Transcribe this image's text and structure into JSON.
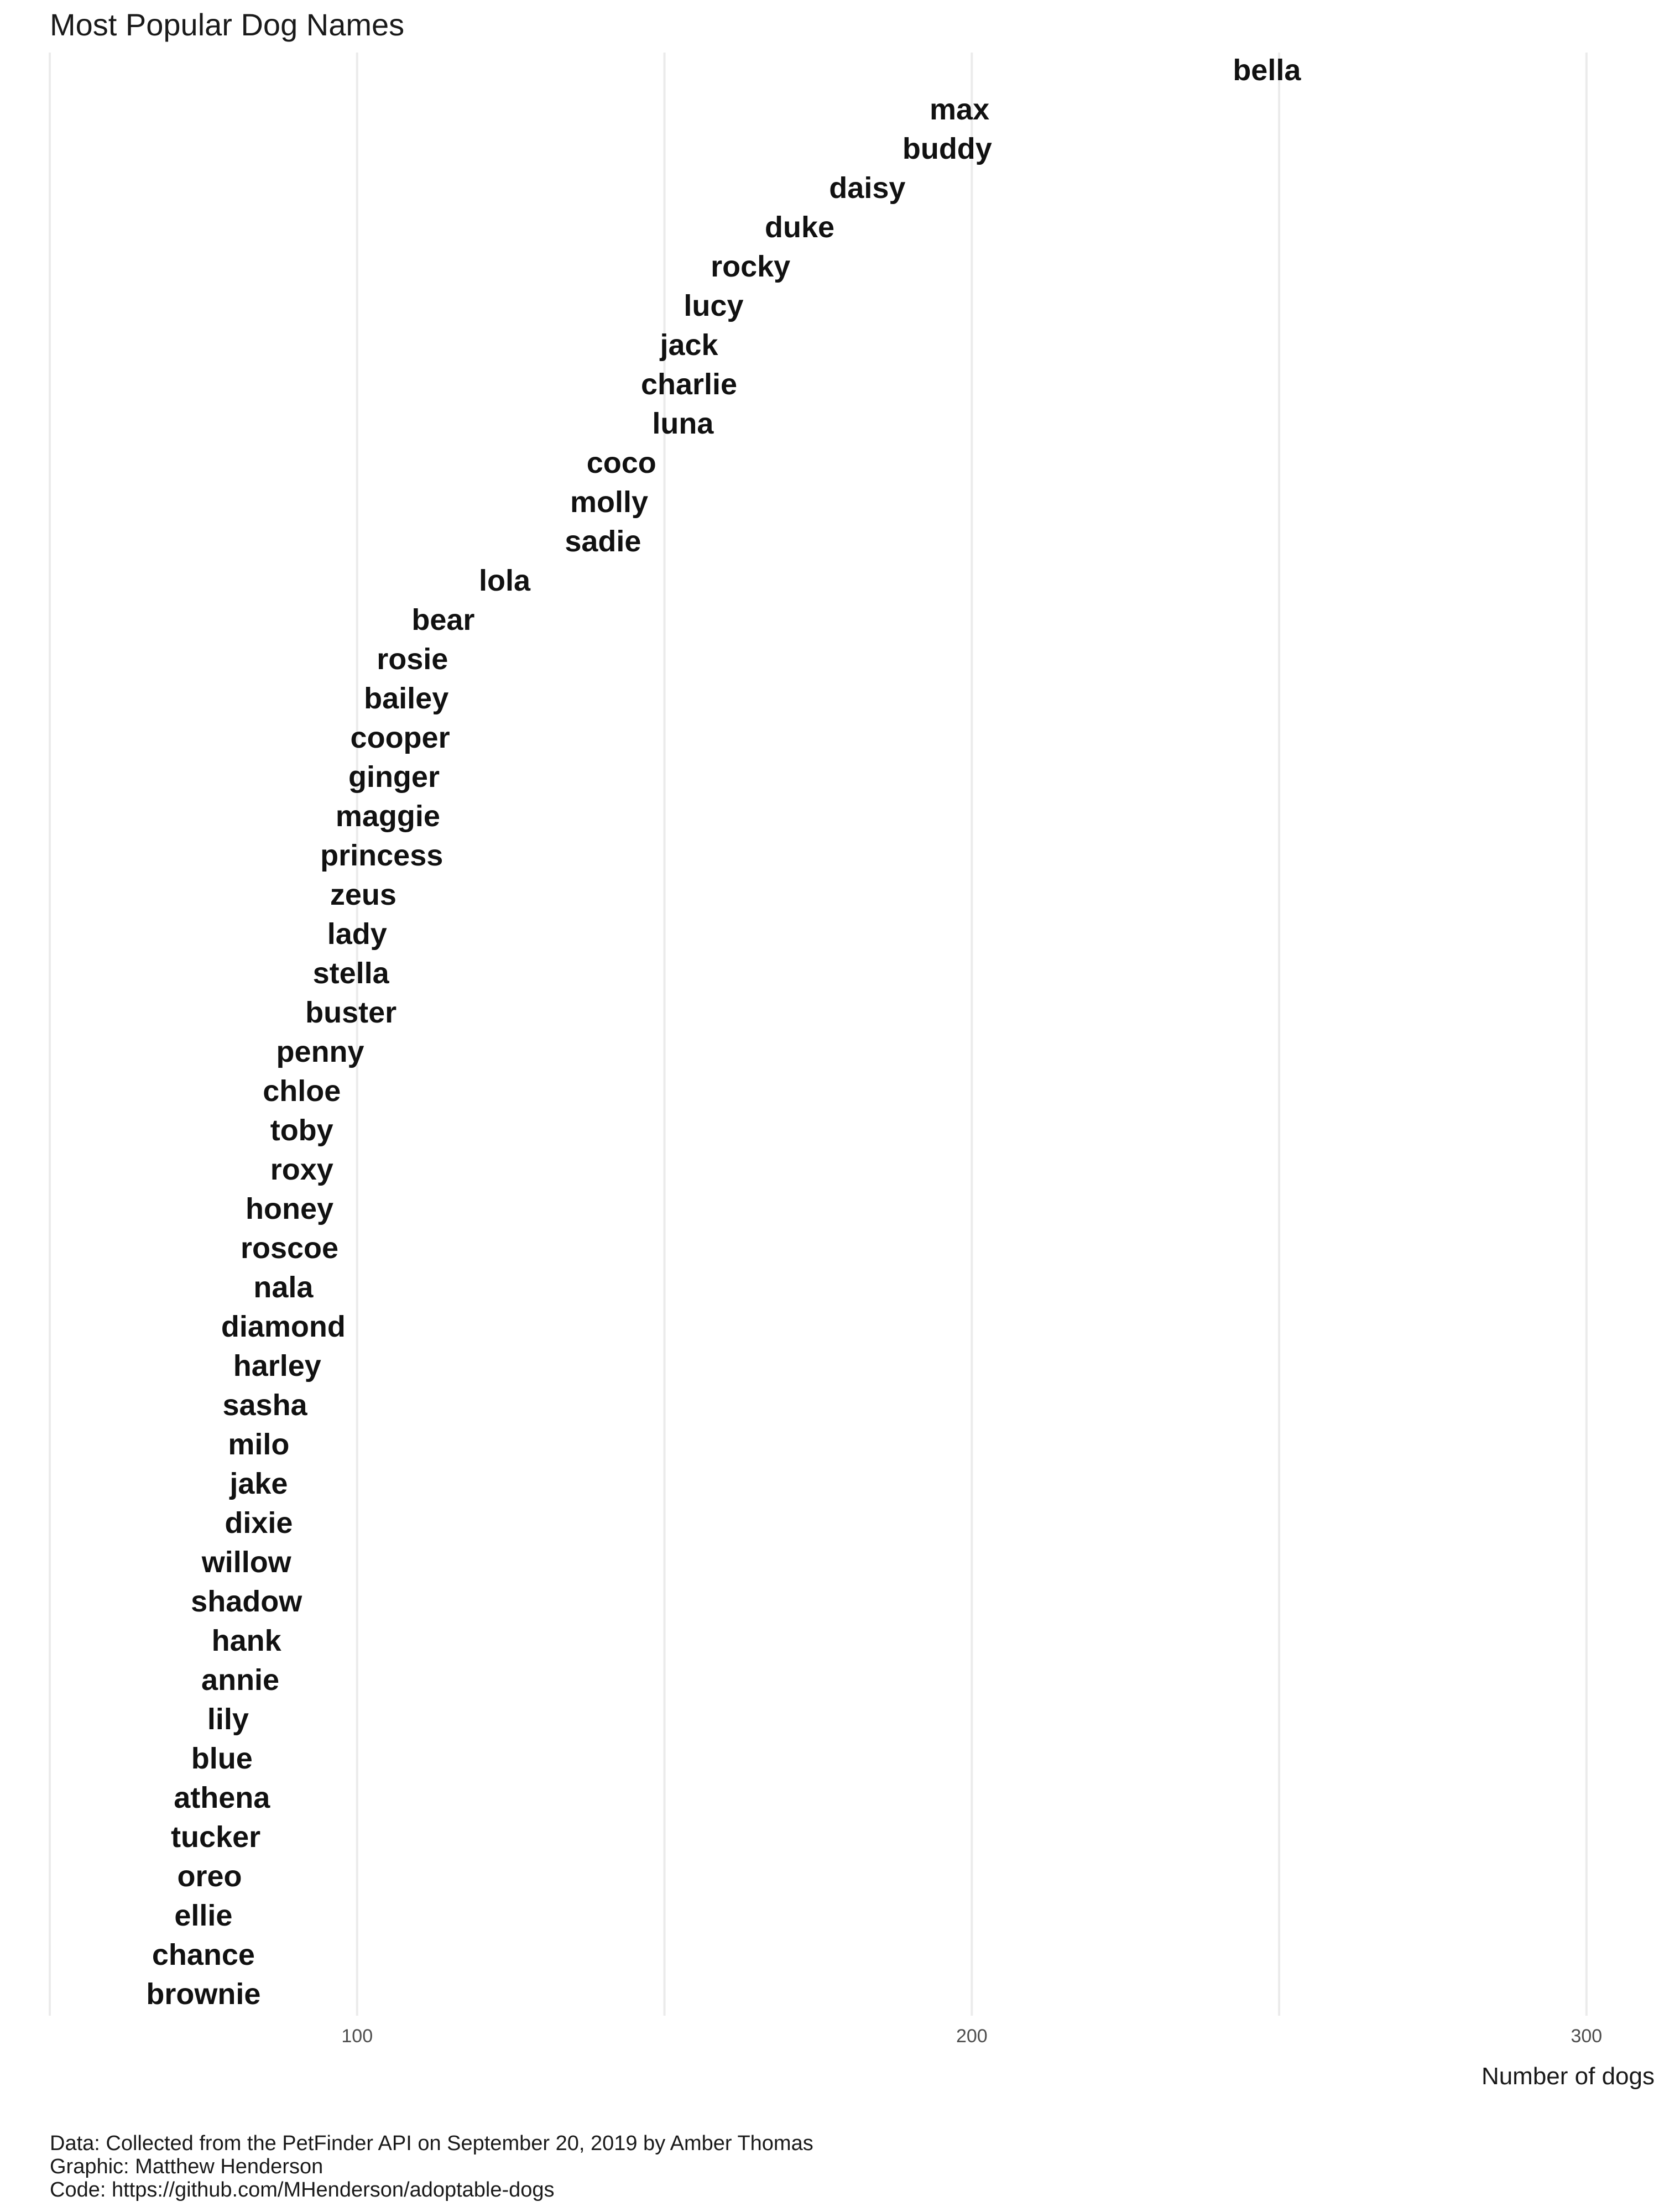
{
  "chart_data": {
    "type": "scatter",
    "title": "Most Popular Dog Names",
    "xlabel": "Number of dogs",
    "ylabel": "",
    "xlim": [
      50,
      310
    ],
    "xticks": [
      100,
      200,
      300
    ],
    "grid": true,
    "points": [
      {
        "name": "bella",
        "value": 248
      },
      {
        "name": "max",
        "value": 198
      },
      {
        "name": "buddy",
        "value": 196
      },
      {
        "name": "daisy",
        "value": 183
      },
      {
        "name": "duke",
        "value": 172
      },
      {
        "name": "rocky",
        "value": 164
      },
      {
        "name": "lucy",
        "value": 158
      },
      {
        "name": "jack",
        "value": 154
      },
      {
        "name": "charlie",
        "value": 154
      },
      {
        "name": "luna",
        "value": 153
      },
      {
        "name": "coco",
        "value": 143
      },
      {
        "name": "molly",
        "value": 141
      },
      {
        "name": "sadie",
        "value": 140
      },
      {
        "name": "lola",
        "value": 124
      },
      {
        "name": "bear",
        "value": 114
      },
      {
        "name": "rosie",
        "value": 109
      },
      {
        "name": "bailey",
        "value": 108
      },
      {
        "name": "cooper",
        "value": 107
      },
      {
        "name": "ginger",
        "value": 106
      },
      {
        "name": "maggie",
        "value": 105
      },
      {
        "name": "princess",
        "value": 104
      },
      {
        "name": "zeus",
        "value": 101
      },
      {
        "name": "lady",
        "value": 100
      },
      {
        "name": "stella",
        "value": 99
      },
      {
        "name": "buster",
        "value": 99
      },
      {
        "name": "penny",
        "value": 94
      },
      {
        "name": "chloe",
        "value": 91
      },
      {
        "name": "toby",
        "value": 91
      },
      {
        "name": "roxy",
        "value": 91
      },
      {
        "name": "honey",
        "value": 89
      },
      {
        "name": "roscoe",
        "value": 89
      },
      {
        "name": "nala",
        "value": 88
      },
      {
        "name": "diamond",
        "value": 88
      },
      {
        "name": "harley",
        "value": 87
      },
      {
        "name": "sasha",
        "value": 85
      },
      {
        "name": "milo",
        "value": 84
      },
      {
        "name": "jake",
        "value": 84
      },
      {
        "name": "dixie",
        "value": 84
      },
      {
        "name": "willow",
        "value": 82
      },
      {
        "name": "shadow",
        "value": 82
      },
      {
        "name": "hank",
        "value": 82
      },
      {
        "name": "annie",
        "value": 81
      },
      {
        "name": "lily",
        "value": 79
      },
      {
        "name": "blue",
        "value": 78
      },
      {
        "name": "athena",
        "value": 78
      },
      {
        "name": "tucker",
        "value": 77
      },
      {
        "name": "oreo",
        "value": 76
      },
      {
        "name": "ellie",
        "value": 75
      },
      {
        "name": "chance",
        "value": 75
      },
      {
        "name": "brownie",
        "value": 75
      }
    ]
  },
  "caption": {
    "line1": "Data: Collected from the PetFinder API on September 20, 2019 by Amber Thomas",
    "line2": "Graphic: Matthew Henderson",
    "line3": "Code: https://github.com/MHenderson/adoptable-dogs"
  }
}
